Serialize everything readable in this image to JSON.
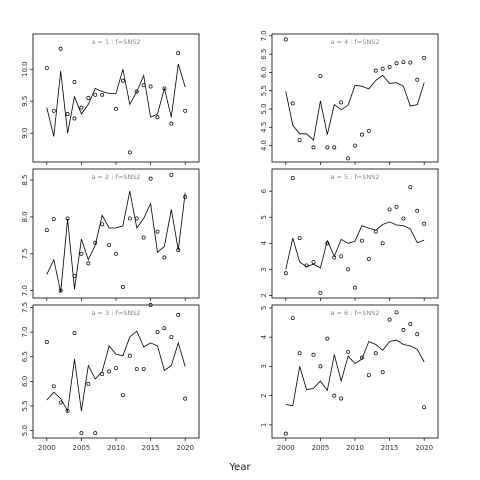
{
  "figure": {
    "xlabel": "Year"
  },
  "chart_data": [
    {
      "type": "line",
      "panel_label": "a = 1 : f=SNS2",
      "xlim": [
        1998,
        2022
      ],
      "ylim": [
        8.55,
        10.55
      ],
      "xticks": [
        2000,
        2005,
        2010,
        2015,
        2020
      ],
      "xtick_labels_shown": false,
      "yticks": [
        9.0,
        9.5,
        10.0
      ],
      "ytick_labels": [
        "9.0",
        "9.5",
        "10.0"
      ],
      "series": [
        {
          "style": "line",
          "x": [
            2000,
            2001,
            2002,
            2003,
            2004,
            2005,
            2006,
            2007,
            2008,
            2009,
            2010,
            2011,
            2012,
            2013,
            2014,
            2015,
            2016,
            2017,
            2018,
            2019,
            2020
          ],
          "y": [
            9.4,
            8.95,
            9.97,
            9.0,
            9.57,
            9.3,
            9.45,
            9.7,
            9.65,
            9.62,
            9.62,
            10.0,
            9.45,
            9.65,
            9.9,
            9.25,
            9.3,
            9.7,
            9.25,
            10.08,
            9.72
          ]
        },
        {
          "style": "points",
          "x": [
            2000,
            2001,
            2002,
            2003,
            2004,
            2004,
            2005,
            2006,
            2007,
            2008,
            2010,
            2011,
            2012,
            2013,
            2014,
            2015,
            2016,
            2017,
            2018,
            2019,
            2020
          ],
          "y": [
            10.02,
            9.35,
            10.32,
            9.3,
            9.8,
            9.23,
            9.4,
            9.55,
            9.6,
            9.6,
            9.38,
            9.82,
            8.7,
            9.65,
            9.75,
            9.73,
            9.25,
            9.7,
            9.15,
            10.25,
            9.35
          ]
        }
      ]
    },
    {
      "type": "line",
      "panel_label": "a = 2 : f=SNS2",
      "xlim": [
        1998,
        2022
      ],
      "ylim": [
        6.9,
        8.65
      ],
      "xticks": [
        2000,
        2005,
        2010,
        2015,
        2020
      ],
      "xtick_labels_shown": false,
      "yticks": [
        7.0,
        7.5,
        8.0,
        8.5
      ],
      "ytick_labels": [
        "7.0",
        "7.5",
        "8.0",
        "8.5"
      ],
      "series": [
        {
          "style": "line",
          "x": [
            2000,
            2001,
            2002,
            2003,
            2004,
            2005,
            2006,
            2007,
            2008,
            2009,
            2010,
            2011,
            2012,
            2013,
            2014,
            2015,
            2016,
            2017,
            2018,
            2019,
            2020
          ],
          "y": [
            7.22,
            7.42,
            6.98,
            7.97,
            7.02,
            7.7,
            7.42,
            7.62,
            8.02,
            7.85,
            7.85,
            7.88,
            8.35,
            7.85,
            7.98,
            8.18,
            7.52,
            7.6,
            8.1,
            7.55,
            8.33
          ]
        },
        {
          "style": "points",
          "x": [
            2000,
            2001,
            2002,
            2003,
            2004,
            2005,
            2006,
            2007,
            2008,
            2009,
            2010,
            2011,
            2012,
            2013,
            2014,
            2015,
            2016,
            2017,
            2018,
            2019,
            2020
          ],
          "y": [
            7.82,
            7.97,
            7.0,
            7.98,
            7.2,
            7.5,
            7.37,
            7.65,
            7.9,
            7.62,
            7.5,
            7.05,
            7.98,
            7.98,
            7.72,
            8.52,
            7.8,
            7.45,
            8.57,
            7.55,
            8.27
          ]
        }
      ]
    },
    {
      "type": "line",
      "panel_label": "a = 3 : f=SNS2",
      "xlim": [
        1998,
        2022
      ],
      "ylim": [
        4.85,
        7.55
      ],
      "xticks": [
        2000,
        2005,
        2010,
        2015,
        2020
      ],
      "xtick_labels_shown": true,
      "xtick_labels": [
        "2000",
        "2005",
        "2010",
        "2015",
        "2020"
      ],
      "yticks": [
        5.0,
        5.5,
        6.0,
        6.5,
        7.0,
        7.5
      ],
      "ytick_labels": [
        "5.0",
        "5.5",
        "6.0",
        "6.5",
        "7.0",
        "7.5"
      ],
      "series": [
        {
          "style": "line",
          "x": [
            2000,
            2001,
            2002,
            2003,
            2004,
            2005,
            2006,
            2007,
            2008,
            2009,
            2010,
            2011,
            2012,
            2013,
            2014,
            2015,
            2016,
            2017,
            2018,
            2019,
            2020
          ],
          "y": [
            5.62,
            5.78,
            5.65,
            5.4,
            6.45,
            5.4,
            6.32,
            6.05,
            6.2,
            6.72,
            6.55,
            6.52,
            6.9,
            7.02,
            6.7,
            6.78,
            6.72,
            6.22,
            6.32,
            6.78,
            6.3
          ]
        },
        {
          "style": "points",
          "x": [
            2000,
            2001,
            2002,
            2003,
            2004,
            2005,
            2006,
            2007,
            2008,
            2009,
            2010,
            2011,
            2012,
            2013,
            2014,
            2015,
            2016,
            2017,
            2018,
            2019,
            2020
          ],
          "y": [
            6.8,
            5.9,
            5.57,
            5.4,
            6.98,
            4.95,
            5.95,
            4.95,
            6.15,
            6.2,
            6.27,
            5.72,
            6.52,
            6.25,
            6.25,
            7.55,
            7.0,
            7.08,
            6.9,
            7.35,
            5.65
          ]
        }
      ]
    },
    {
      "type": "line",
      "panel_label": "a = 4 : f=SNS2",
      "xlim": [
        1998,
        2022
      ],
      "ylim": [
        3.55,
        7.05
      ],
      "xticks": [
        2000,
        2005,
        2010,
        2015,
        2020
      ],
      "xtick_labels_shown": false,
      "yticks": [
        4.0,
        4.5,
        5.0,
        5.5,
        6.0,
        6.5,
        7.0
      ],
      "ytick_labels": [
        "4.0",
        "4.5",
        "5.0",
        "5.5",
        "6.0",
        "6.5",
        "7.0"
      ],
      "series": [
        {
          "style": "line",
          "x": [
            2000,
            2001,
            2002,
            2003,
            2004,
            2005,
            2006,
            2007,
            2008,
            2009,
            2010,
            2011,
            2012,
            2013,
            2014,
            2015,
            2016,
            2017,
            2018,
            2019,
            2020
          ],
          "y": [
            5.48,
            4.55,
            4.32,
            4.32,
            4.15,
            5.22,
            4.3,
            5.12,
            4.98,
            5.1,
            5.65,
            5.62,
            5.55,
            5.78,
            5.92,
            5.7,
            5.72,
            5.62,
            5.08,
            5.12,
            5.72
          ]
        },
        {
          "style": "points",
          "x": [
            2000,
            2001,
            2002,
            2004,
            2005,
            2006,
            2007,
            2008,
            2009,
            2010,
            2011,
            2012,
            2013,
            2014,
            2015,
            2016,
            2017,
            2018,
            2019,
            2020
          ],
          "y": [
            6.9,
            5.15,
            4.15,
            3.95,
            5.9,
            3.95,
            3.95,
            5.18,
            3.65,
            4.0,
            4.3,
            4.4,
            6.05,
            6.1,
            6.15,
            6.25,
            6.28,
            6.27,
            5.8,
            6.4
          ]
        }
      ]
    },
    {
      "type": "line",
      "panel_label": "a = 5 : f=SNS2",
      "xlim": [
        1998,
        2022
      ],
      "ylim": [
        1.9,
        6.85
      ],
      "xticks": [
        2000,
        2005,
        2010,
        2015,
        2020
      ],
      "xtick_labels_shown": false,
      "yticks": [
        2,
        3,
        4,
        5,
        6
      ],
      "ytick_labels": [
        "2",
        "3",
        "4",
        "5",
        "6"
      ],
      "series": [
        {
          "style": "line",
          "x": [
            2000,
            2001,
            2002,
            2003,
            2004,
            2005,
            2006,
            2007,
            2008,
            2009,
            2010,
            2011,
            2012,
            2013,
            2014,
            2015,
            2016,
            2017,
            2018,
            2019,
            2020
          ],
          "y": [
            3.0,
            4.2,
            3.28,
            3.1,
            3.2,
            3.05,
            4.1,
            3.5,
            4.15,
            4.0,
            4.08,
            4.68,
            4.58,
            4.5,
            4.72,
            4.82,
            4.7,
            4.68,
            4.55,
            4.02,
            4.12
          ]
        },
        {
          "style": "points",
          "x": [
            2000,
            2001,
            2002,
            2003,
            2004,
            2005,
            2006,
            2007,
            2008,
            2009,
            2010,
            2011,
            2012,
            2013,
            2014,
            2015,
            2016,
            2017,
            2018,
            2019,
            2020
          ],
          "y": [
            2.85,
            6.5,
            4.2,
            3.15,
            3.28,
            2.1,
            4.0,
            3.45,
            3.5,
            3.0,
            2.3,
            4.1,
            3.4,
            4.45,
            4.0,
            5.3,
            5.4,
            4.95,
            6.15,
            5.25,
            4.75
          ]
        }
      ]
    },
    {
      "type": "line",
      "panel_label": "a = 6 : f=SNS2",
      "xlim": [
        1998,
        2022
      ],
      "ylim": [
        0.55,
        5.1
      ],
      "xticks": [
        2000,
        2005,
        2010,
        2015,
        2020
      ],
      "xtick_labels_shown": true,
      "xtick_labels": [
        "2000",
        "2005",
        "2010",
        "2015",
        "2020"
      ],
      "yticks": [
        1,
        2,
        3,
        4,
        5
      ],
      "ytick_labels": [
        "1",
        "2",
        "3",
        "4",
        "5"
      ],
      "series": [
        {
          "style": "line",
          "x": [
            2000,
            2001,
            2002,
            2003,
            2004,
            2005,
            2006,
            2007,
            2008,
            2009,
            2010,
            2011,
            2012,
            2013,
            2014,
            2015,
            2016,
            2017,
            2018,
            2019,
            2020
          ],
          "y": [
            1.7,
            1.65,
            3.0,
            2.2,
            2.25,
            2.5,
            2.18,
            3.4,
            2.5,
            3.35,
            3.1,
            3.25,
            3.85,
            3.75,
            3.55,
            3.85,
            3.9,
            3.75,
            3.7,
            3.58,
            3.15
          ]
        },
        {
          "style": "points",
          "x": [
            2000,
            2001,
            2002,
            2004,
            2005,
            2006,
            2007,
            2008,
            2009,
            2011,
            2012,
            2013,
            2014,
            2015,
            2016,
            2017,
            2018,
            2019,
            2020
          ],
          "y": [
            0.7,
            4.65,
            3.45,
            3.4,
            3.0,
            3.95,
            2.0,
            1.9,
            3.5,
            3.3,
            2.7,
            3.45,
            2.8,
            4.6,
            4.85,
            4.25,
            4.45,
            4.1,
            1.6
          ]
        }
      ]
    }
  ]
}
